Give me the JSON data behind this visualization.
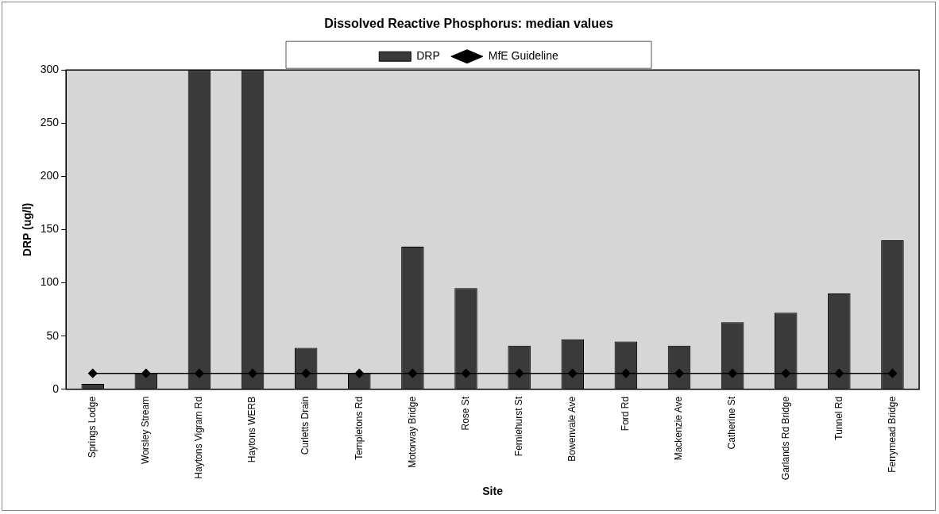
{
  "chart_data": {
    "type": "bar",
    "title": "Dissolved Reactive Phosphorus: median values",
    "xlabel": "Site",
    "ylabel": "DRP (ug/l)",
    "categories": [
      "Springs Lodge",
      "Worsley Stream",
      "Haytons Vigram Rd",
      "Haytons WERB",
      "Curletts Drain",
      "Templetons Rd",
      "Motorway Bridge",
      "Rose St",
      "Ferniehurst St",
      "Bowenvale Ave",
      "Ford Rd",
      "Mackenzie Ave",
      "Catherine St",
      "Garlands Rd Bridge",
      "Tunnel Rd",
      "Ferrymead Bridge"
    ],
    "series": [
      {
        "name": "DRP",
        "color": "#3a3a3a",
        "values": [
          5,
          15,
          300,
          300,
          39,
          15,
          134,
          95,
          41,
          47,
          45,
          41,
          63,
          72,
          90,
          140
        ]
      },
      {
        "name": "MfE Guideline",
        "type": "line",
        "color": "#000000",
        "marker": "diamond",
        "values": [
          15,
          15,
          15,
          15,
          15,
          15,
          15,
          15,
          15,
          15,
          15,
          15,
          15,
          15,
          15,
          15
        ]
      }
    ],
    "ylim": [
      0,
      300
    ],
    "yticks": [
      0,
      50,
      100,
      150,
      200,
      250,
      300
    ],
    "grid": false,
    "legend": "top"
  }
}
